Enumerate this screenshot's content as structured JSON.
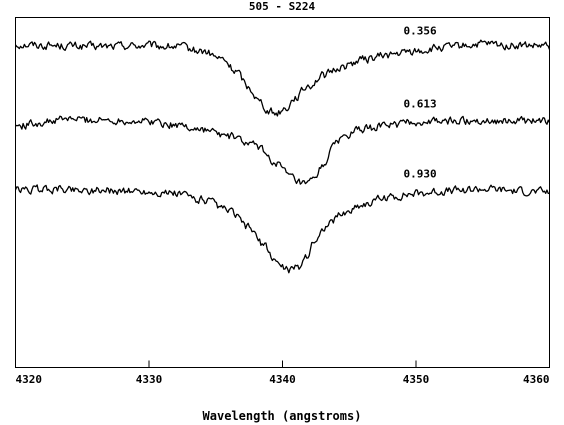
{
  "chart_data": {
    "type": "line",
    "title": "505 - S224",
    "xlabel": "Wavelength (angstroms)",
    "ylabel": "",
    "xlim": [
      4320,
      4360
    ],
    "xticks": [
      4320,
      4330,
      4340,
      4350,
      4360
    ],
    "ylim": [
      0,
      1.5
    ],
    "grid": false,
    "series": [
      {
        "name": "0.356",
        "x": [
          4320,
          4323,
          4326,
          4329,
          4332,
          4334,
          4335.5,
          4336.5,
          4337.5,
          4338.3,
          4339.0,
          4339.5,
          4340.2,
          4341.0,
          4342.0,
          4343.0,
          4344.5,
          4346,
          4348,
          4350,
          4352,
          4355,
          4357,
          4360
        ],
        "y": [
          1.385,
          1.38,
          1.375,
          1.38,
          1.375,
          1.355,
          1.32,
          1.27,
          1.2,
          1.14,
          1.1,
          1.09,
          1.11,
          1.16,
          1.21,
          1.25,
          1.29,
          1.32,
          1.34,
          1.355,
          1.37,
          1.385,
          1.38,
          1.375
        ]
      },
      {
        "name": "0.613",
        "x": [
          4320,
          4322,
          4324,
          4326,
          4328,
          4330,
          4332,
          4334,
          4336,
          4338,
          4339.5,
          4340.5,
          4341.2,
          4341.8,
          4342.3,
          4343,
          4343.7,
          4344.5,
          4346,
          4348,
          4350,
          4352,
          4355,
          4358,
          4360
        ],
        "y": [
          1.035,
          1.05,
          1.065,
          1.06,
          1.06,
          1.055,
          1.04,
          1.02,
          0.99,
          0.95,
          0.88,
          0.82,
          0.79,
          0.78,
          0.8,
          0.86,
          0.94,
          0.99,
          1.02,
          1.04,
          1.05,
          1.055,
          1.06,
          1.055,
          1.055
        ]
      },
      {
        "name": "0.930",
        "x": [
          4320,
          4323,
          4326,
          4329,
          4332,
          4334,
          4336,
          4337.5,
          4338.5,
          4339.3,
          4340.0,
          4340.6,
          4341.2,
          4341.8,
          4342.5,
          4343.3,
          4344.5,
          4346,
          4348,
          4350,
          4352,
          4355,
          4358,
          4360
        ],
        "y": [
          0.76,
          0.765,
          0.76,
          0.755,
          0.745,
          0.72,
          0.67,
          0.6,
          0.53,
          0.47,
          0.43,
          0.42,
          0.43,
          0.48,
          0.55,
          0.61,
          0.66,
          0.7,
          0.73,
          0.745,
          0.755,
          0.765,
          0.755,
          0.75
        ]
      }
    ]
  }
}
